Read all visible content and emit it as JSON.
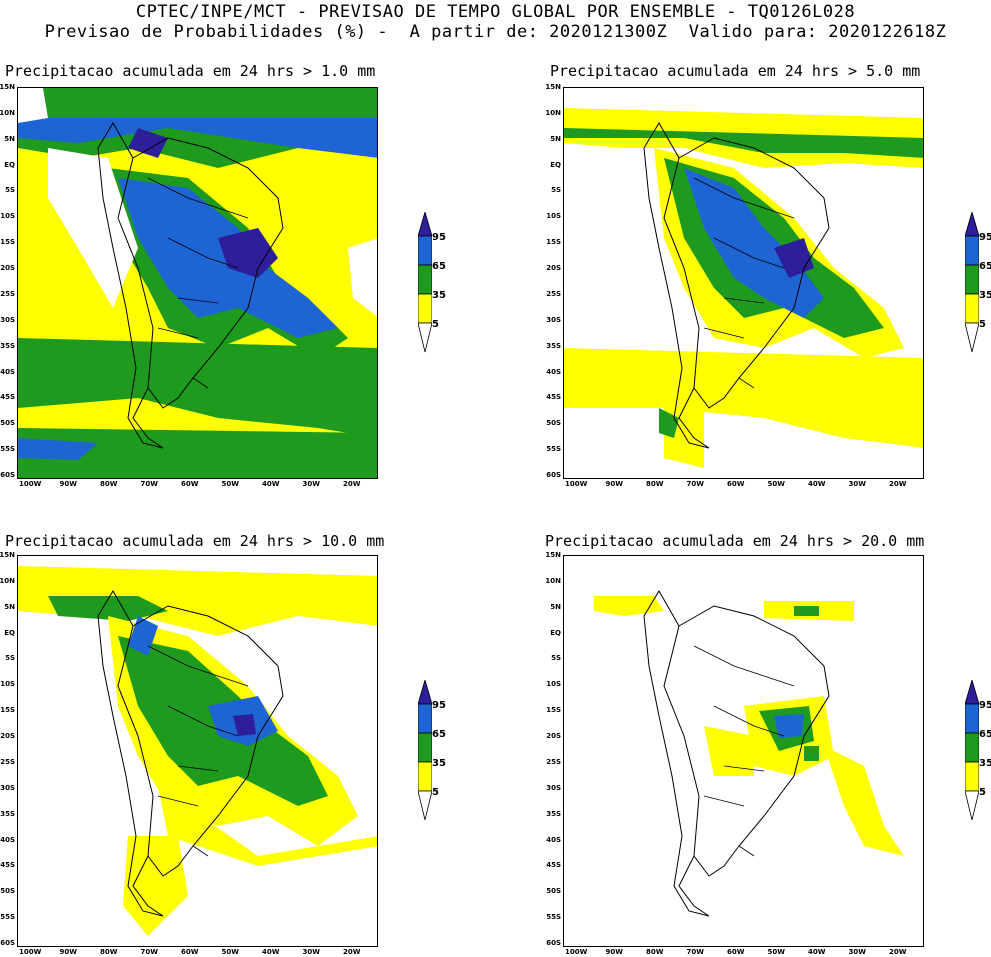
{
  "header": {
    "title_line1": "CPTEC/INPE/MCT - PREVISAO DE TEMPO GLOBAL POR ENSEMBLE - TQ0126L028",
    "title_line2": "Previsao de Probabilidades (%) -  A partir de: 2020121300Z  Valido para: 2020122618Z"
  },
  "panels": [
    {
      "title": "Precipitacao acumulada em 24 hrs > 1.0 mm"
    },
    {
      "title": "Precipitacao acumulada em 24 hrs > 5.0 mm"
    },
    {
      "title": "Precipitacao acumulada em 24 hrs > 10.0 mm"
    },
    {
      "title": "Precipitacao acumulada em 24 hrs > 20.0 mm"
    }
  ],
  "axes": {
    "lat_labels": [
      "15N",
      "10N",
      "5N",
      "EQ",
      "5S",
      "10S",
      "15S",
      "20S",
      "25S",
      "30S",
      "35S",
      "40S",
      "45S",
      "50S",
      "55S",
      "60S"
    ],
    "lon_labels": [
      "100W",
      "90W",
      "80W",
      "70W",
      "60W",
      "50W",
      "40W",
      "30W",
      "20W"
    ]
  },
  "colorbar": {
    "labels": [
      "95",
      "65",
      "35",
      "5"
    ],
    "colors": {
      "c5": "#ffff00",
      "c35": "#1e9a1e",
      "c65": "#1e64d2",
      "c95": "#2d1e9a"
    }
  }
}
